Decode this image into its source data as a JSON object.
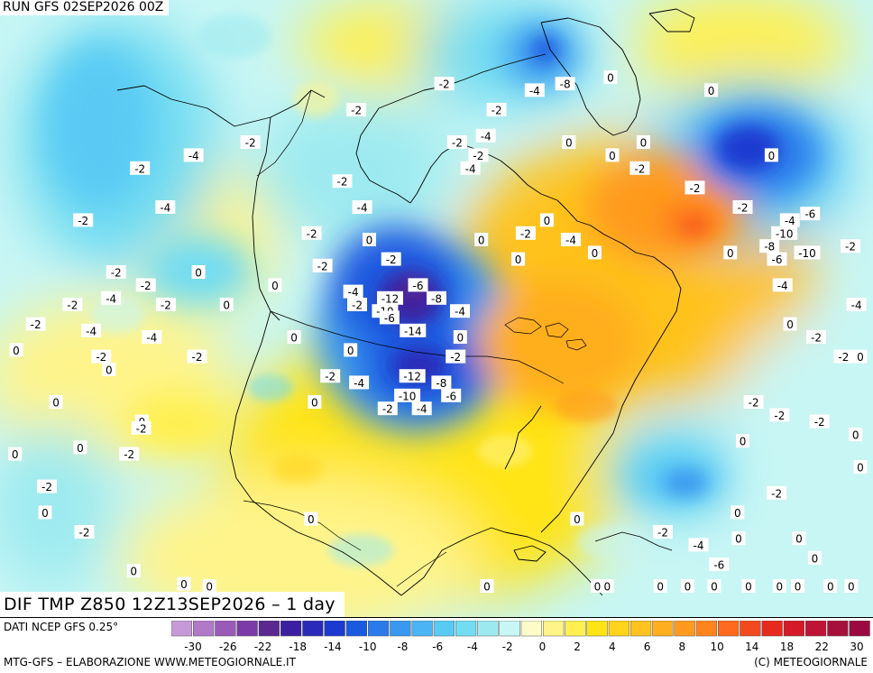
{
  "header": {
    "run_title": "RUN GFS 02SEP2026 00Z"
  },
  "product": {
    "title": "DIF TMP Z850 12Z13SEP2026 – 1 day"
  },
  "source": {
    "label": "DATI NCEP GFS 0.25°"
  },
  "footer": {
    "left": "MTG-GFS – ELABORAZIONE WWW.METEOGIORNALE.IT",
    "right": "(C) METEOGIORNALE"
  },
  "legend": {
    "unit": "°",
    "colors": [
      "#c69ad6",
      "#b07ac8",
      "#9a5ab8",
      "#7c3aa8",
      "#5a2890",
      "#3a20a0",
      "#2a2ab8",
      "#1a3ad0",
      "#1a5ae0",
      "#2a7aec",
      "#3a98f0",
      "#4ab4f4",
      "#5acaf4",
      "#72dcf2",
      "#9ceaf0",
      "#c8f6f4",
      "#fffbc8",
      "#fff48a",
      "#fff050",
      "#ffe414",
      "#ffd41a",
      "#ffc21e",
      "#ffae1e",
      "#ff9a1e",
      "#ff841e",
      "#ff6a1e",
      "#f4481e",
      "#e82a1e",
      "#d41a2a",
      "#c01436",
      "#a8103c",
      "#9a0a40"
    ],
    "tick_labels": [
      "-30",
      "-26",
      "-22",
      "-18",
      "-14",
      "-10",
      "-8",
      "-6",
      "-4",
      "-2",
      "0",
      "2",
      "4",
      "6",
      "8",
      "10",
      "14",
      "18",
      "22",
      "30"
    ]
  },
  "map": {
    "contour_labels": [
      {
        "text": "-2",
        "lon": -160,
        "lat": 66
      },
      {
        "text": "-4",
        "lon": -148,
        "lat": 68
      },
      {
        "text": "-2",
        "lon": -135,
        "lat": 70
      },
      {
        "text": "-4",
        "lon": -152,
        "lat": 60
      },
      {
        "text": "-2",
        "lon": -170,
        "lat": 58
      },
      {
        "text": "-2",
        "lon": -160,
        "lat": 50
      },
      {
        "text": "-2",
        "lon": -168,
        "lat": 45
      },
      {
        "text": "-4",
        "lon": -160,
        "lat": 46
      },
      {
        "text": "-2",
        "lon": -153,
        "lat": 48
      },
      {
        "text": "-2",
        "lon": -175,
        "lat": 42
      },
      {
        "text": "-4",
        "lon": -163,
        "lat": 41
      },
      {
        "text": "-2",
        "lon": -148,
        "lat": 45
      },
      {
        "text": "-4",
        "lon": -150,
        "lat": 40
      },
      {
        "text": "-2",
        "lon": -160,
        "lat": 37
      },
      {
        "text": "-2",
        "lon": -140,
        "lat": 37
      },
      {
        "text": "0",
        "lon": -178,
        "lat": 38
      },
      {
        "text": "0",
        "lon": -158,
        "lat": 35
      },
      {
        "text": "0",
        "lon": -168,
        "lat": 30
      },
      {
        "text": "0",
        "lon": -150,
        "lat": 27
      },
      {
        "text": "-2",
        "lon": -150,
        "lat": 26
      },
      {
        "text": "0",
        "lon": -175,
        "lat": 22
      },
      {
        "text": "0",
        "lon": -162,
        "lat": 23
      },
      {
        "text": "-2",
        "lon": -152,
        "lat": 22
      },
      {
        "text": "-2",
        "lon": -168,
        "lat": 17
      },
      {
        "text": "0",
        "lon": -168,
        "lat": 13
      },
      {
        "text": "-2",
        "lon": -160,
        "lat": 10
      },
      {
        "text": "0",
        "lon": -150,
        "lat": 4
      },
      {
        "text": "0",
        "lon": -140,
        "lat": 2
      },
      {
        "text": "0",
        "lon": -142,
        "lat": 50
      },
      {
        "text": "0",
        "lon": -135,
        "lat": 45
      },
      {
        "text": "-2",
        "lon": -110,
        "lat": 75
      },
      {
        "text": "-2",
        "lon": -112,
        "lat": 64
      },
      {
        "text": "-4",
        "lon": -107,
        "lat": 60
      },
      {
        "text": "-2",
        "lon": -118,
        "lat": 56
      },
      {
        "text": "-2",
        "lon": -115,
        "lat": 51
      },
      {
        "text": "0",
        "lon": -105,
        "lat": 55
      },
      {
        "text": "-2",
        "lon": -100,
        "lat": 52
      },
      {
        "text": "0",
        "lon": -125,
        "lat": 48
      },
      {
        "text": "-4",
        "lon": -108,
        "lat": 47
      },
      {
        "text": "-2",
        "lon": -107,
        "lat": 45
      },
      {
        "text": "-12",
        "lon": -100,
        "lat": 46
      },
      {
        "text": "-6",
        "lon": -94,
        "lat": 48
      },
      {
        "text": "-8",
        "lon": -90,
        "lat": 46
      },
      {
        "text": "-10",
        "lon": -101,
        "lat": 44
      },
      {
        "text": "-6",
        "lon": -100,
        "lat": 43
      },
      {
        "text": "-4",
        "lon": -85,
        "lat": 44
      },
      {
        "text": "-14",
        "lon": -95,
        "lat": 41
      },
      {
        "text": "0",
        "lon": -120,
        "lat": 40
      },
      {
        "text": "0",
        "lon": -108,
        "lat": 38
      },
      {
        "text": "0",
        "lon": -85,
        "lat": 40
      },
      {
        "text": "-2",
        "lon": -86,
        "lat": 37
      },
      {
        "text": "-2",
        "lon": -112,
        "lat": 34
      },
      {
        "text": "-4",
        "lon": -106,
        "lat": 33
      },
      {
        "text": "-12",
        "lon": -95,
        "lat": 34
      },
      {
        "text": "-8",
        "lon": -89,
        "lat": 33
      },
      {
        "text": "-6",
        "lon": -87,
        "lat": 31
      },
      {
        "text": "-10",
        "lon": -96,
        "lat": 31
      },
      {
        "text": "-2",
        "lon": -100,
        "lat": 29
      },
      {
        "text": "-4",
        "lon": -93,
        "lat": 29
      },
      {
        "text": "0",
        "lon": -115,
        "lat": 30
      },
      {
        "text": "-2",
        "lon": -88,
        "lat": 79
      },
      {
        "text": "-2",
        "lon": -75,
        "lat": 75
      },
      {
        "text": "-4",
        "lon": -78,
        "lat": 71
      },
      {
        "text": "-2",
        "lon": -85,
        "lat": 70
      },
      {
        "text": "-4",
        "lon": -82,
        "lat": 66
      },
      {
        "text": "-2",
        "lon": -80,
        "lat": 68
      },
      {
        "text": "-8",
        "lon": -57,
        "lat": 79
      },
      {
        "text": "-4",
        "lon": -65,
        "lat": 78
      },
      {
        "text": "0",
        "lon": -45,
        "lat": 80
      },
      {
        "text": "0",
        "lon": -20,
        "lat": 78
      },
      {
        "text": "0",
        "lon": -58,
        "lat": 70
      },
      {
        "text": "0",
        "lon": -48,
        "lat": 68
      },
      {
        "text": "-2",
        "lon": -42,
        "lat": 66
      },
      {
        "text": "0",
        "lon": -40,
        "lat": 70
      },
      {
        "text": "-2",
        "lon": -30,
        "lat": 63
      },
      {
        "text": "0",
        "lon": -10,
        "lat": 68
      },
      {
        "text": "-2",
        "lon": -20,
        "lat": 60
      },
      {
        "text": "-4",
        "lon": -10,
        "lat": 58
      },
      {
        "text": "-6",
        "lon": -5,
        "lat": 59
      },
      {
        "text": "-10",
        "lon": -12,
        "lat": 56
      },
      {
        "text": "-8",
        "lon": -16,
        "lat": 54
      },
      {
        "text": "-6",
        "lon": -15,
        "lat": 52
      },
      {
        "text": "-10",
        "lon": -8,
        "lat": 53
      },
      {
        "text": "-2",
        "lon": 2,
        "lat": 54
      },
      {
        "text": "-4",
        "lon": -15,
        "lat": 48
      },
      {
        "text": "-4",
        "lon": 0,
        "lat": 45
      },
      {
        "text": "0",
        "lon": -25,
        "lat": 53
      },
      {
        "text": "0",
        "lon": -65,
        "lat": 58
      },
      {
        "text": "-2",
        "lon": -70,
        "lat": 56
      },
      {
        "text": "-4",
        "lon": -60,
        "lat": 55
      },
      {
        "text": "0",
        "lon": -55,
        "lat": 53
      },
      {
        "text": "0",
        "lon": -72,
        "lat": 52
      },
      {
        "text": "0",
        "lon": -80,
        "lat": 55
      },
      {
        "text": "0",
        "lon": -15,
        "lat": 42
      },
      {
        "text": "-2",
        "lon": -10,
        "lat": 40
      },
      {
        "text": "-2",
        "lon": -5,
        "lat": 37
      },
      {
        "text": "0",
        "lon": 5,
        "lat": 37
      },
      {
        "text": "-2",
        "lon": -25,
        "lat": 30
      },
      {
        "text": "-2",
        "lon": -20,
        "lat": 28
      },
      {
        "text": "-2",
        "lon": -12,
        "lat": 27
      },
      {
        "text": "0",
        "lon": -28,
        "lat": 24
      },
      {
        "text": "0",
        "lon": -5,
        "lat": 25
      },
      {
        "text": "0",
        "lon": -3,
        "lat": 20
      },
      {
        "text": "-2",
        "lon": -22,
        "lat": 16
      },
      {
        "text": "0",
        "lon": -30,
        "lat": 13
      },
      {
        "text": "-2",
        "lon": -45,
        "lat": 10
      },
      {
        "text": "0",
        "lon": -62,
        "lat": 12
      },
      {
        "text": "-4",
        "lon": -38,
        "lat": 8
      },
      {
        "text": "-6",
        "lon": -34,
        "lat": 5
      },
      {
        "text": "0",
        "lon": -30,
        "lat": 9
      },
      {
        "text": "0",
        "lon": -18,
        "lat": 9
      },
      {
        "text": "0",
        "lon": -15,
        "lat": 6
      },
      {
        "text": "0",
        "lon": -12,
        "lat": 0
      },
      {
        "text": "0",
        "lon": -35,
        "lat": -3
      },
      {
        "text": "0",
        "lon": -22,
        "lat": -6
      },
      {
        "text": "0",
        "lon": -28,
        "lat": -10
      },
      {
        "text": "0",
        "lon": -40,
        "lat": -12
      },
      {
        "text": "0",
        "lon": -45,
        "lat": -20
      },
      {
        "text": "0",
        "lon": -55,
        "lat": -30
      },
      {
        "text": "0",
        "lon": -80,
        "lat": 0
      },
      {
        "text": "0",
        "lon": -15,
        "lat": -35
      },
      {
        "text": "0",
        "lon": -5,
        "lat": -30
      },
      {
        "text": "0",
        "lon": -58,
        "lat": -10
      },
      {
        "text": "0",
        "lon": -115,
        "lat": 12
      },
      {
        "text": "0",
        "lon": -135,
        "lat": -5
      }
    ]
  }
}
